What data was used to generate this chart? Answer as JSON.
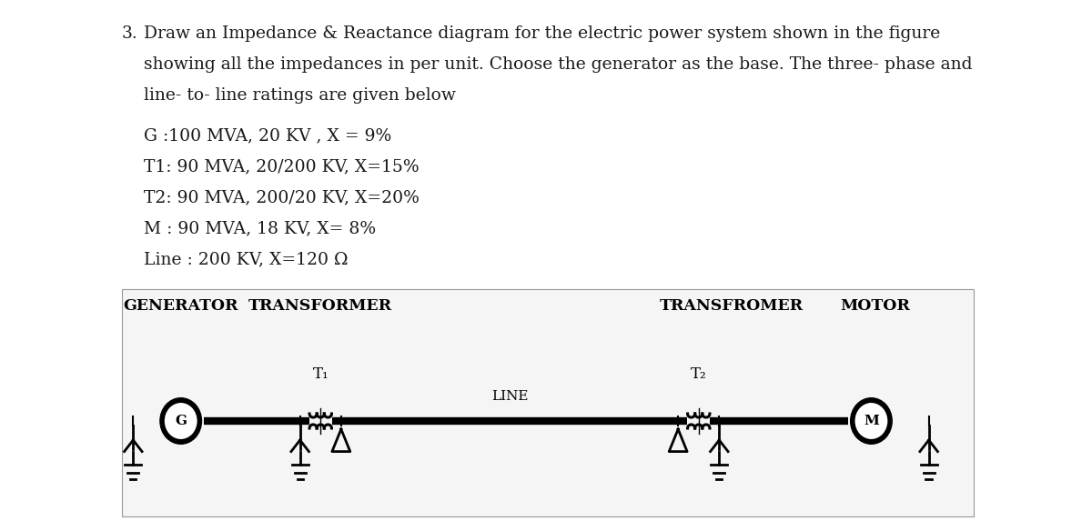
{
  "title_number": "3.",
  "title_text": "Draw an Impedance & Reactance diagram for the electric power system shown in the figure",
  "line2": "showing all the impedances in per unit. Choose the generator as the base. The three- phase and",
  "line3": "line- to- line ratings are given below",
  "spec1": "G :100 MVA, 20 KV , X = 9%",
  "spec2": "T1: 90 MVA, 20/200 KV, X=15%",
  "spec3": "T2: 90 MVA, 200/20 KV, X=20%",
  "spec4": "M : 90 MVA, 18 KV, X= 8%",
  "spec5": "Line : 200 KV, X=120 Ω",
  "label_generator": "GENERATOR",
  "label_transformer1": "TRANSFORMER",
  "label_transfromer2": "TRANSFROMER",
  "label_motor": "MOTOR",
  "label_T1": "T₁",
  "label_T2": "T₂",
  "label_LINE": "LINE",
  "bg_color": "#ffffff",
  "text_color": "#1a1a1a",
  "diagram_bg": "#f5f5f5",
  "font_size_body": 13.5,
  "font_size_bold_labels": 12.5
}
